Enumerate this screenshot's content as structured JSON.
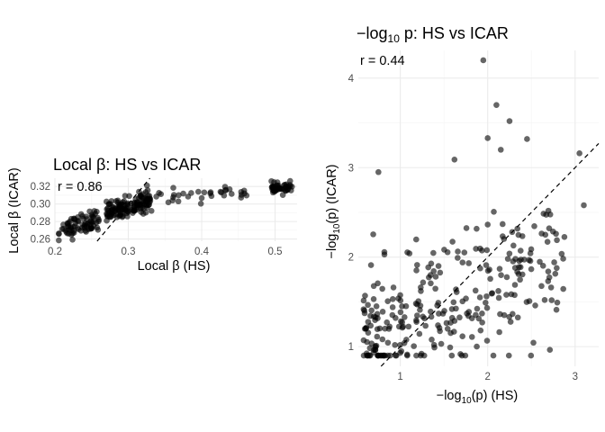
{
  "chart_data": [
    {
      "type": "scatter",
      "title": "Local β: HS vs ICAR",
      "xlabel": "Local β (HS)",
      "ylabel": "Local β (ICAR)",
      "annotation": "r = 0.86",
      "xticks": [
        "0.2",
        "0.3",
        "0.4",
        "0.5"
      ],
      "yticks": [
        "0.26",
        "0.28",
        "0.30",
        "0.32"
      ],
      "xlim": [
        0.2,
        0.53
      ],
      "ylim": [
        0.2575,
        0.3295
      ],
      "reference_line": "y = x",
      "grid": true,
      "point_color": "#000000",
      "n_points": 300
    },
    {
      "type": "scatter",
      "title": "−log10 p: HS vs ICAR",
      "xlabel": "−log10(p) (HS)",
      "ylabel": "−log10(p) (ICAR)",
      "annotation": "r = 0.44",
      "xticks": [
        "1",
        "2",
        "3"
      ],
      "yticks": [
        "1",
        "2",
        "3",
        "4"
      ],
      "xlim": [
        0.52,
        3.27
      ],
      "ylim": [
        0.78,
        4.31
      ],
      "reference_line": "y = x",
      "grid": true,
      "point_color": "#000000",
      "n_points": 300
    }
  ],
  "title_parts": {
    "left": {
      "text": "Local β: HS vs ICAR"
    },
    "right": {
      "minus": "−",
      "log": "log",
      "base": "10",
      "rest": " p: HS vs ICAR"
    }
  },
  "axis_label_parts": {
    "left_x": "Local β (HS)",
    "left_y": "Local β (ICAR)",
    "right_x": {
      "minus": "−",
      "log": "log",
      "base": "10",
      "rest": "(p) (HS)"
    },
    "right_y": {
      "minus": "−",
      "log": "log",
      "base": "10",
      "rest": "(p) (ICAR)"
    }
  }
}
